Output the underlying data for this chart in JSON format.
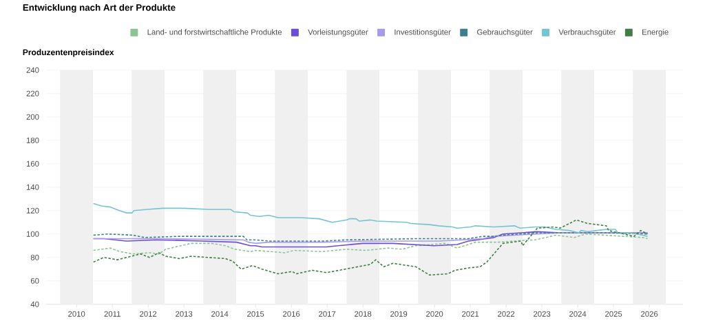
{
  "chart_data": {
    "type": "line",
    "title": "Entwicklung nach Art der Produkte",
    "ylabel": "Produzentenpreisindex",
    "xlim": [
      2009.15,
      2026.94
    ],
    "ylim": [
      40,
      240
    ],
    "xticks": [
      2010,
      2011,
      2012,
      2013,
      2014,
      2015,
      2016,
      2017,
      2018,
      2019,
      2020,
      2021,
      2022,
      2023,
      2024,
      2025,
      2026
    ],
    "yticks": [
      40,
      60,
      80,
      100,
      120,
      140,
      160,
      180,
      200,
      220,
      240
    ],
    "grid": "y",
    "legend": "top",
    "bands": [
      {
        "axis": "x",
        "from": 2009.54,
        "to": 2010.46,
        "color": "#f0f0f0"
      },
      {
        "axis": "x",
        "from": 2011.54,
        "to": 2012.46,
        "color": "#f0f0f0"
      },
      {
        "axis": "x",
        "from": 2013.54,
        "to": 2014.46,
        "color": "#f0f0f0"
      },
      {
        "axis": "x",
        "from": 2015.54,
        "to": 2016.46,
        "color": "#f0f0f0"
      },
      {
        "axis": "x",
        "from": 2017.54,
        "to": 2018.46,
        "color": "#f0f0f0"
      },
      {
        "axis": "x",
        "from": 2019.54,
        "to": 2020.46,
        "color": "#f0f0f0"
      },
      {
        "axis": "x",
        "from": 2021.54,
        "to": 2022.46,
        "color": "#f0f0f0"
      },
      {
        "axis": "x",
        "from": 2023.54,
        "to": 2024.46,
        "color": "#f0f0f0"
      },
      {
        "axis": "x",
        "from": 2025.54,
        "to": 2026.46,
        "color": "#f0f0f0"
      }
    ],
    "series": [
      {
        "name": "Land- und forstwirtschaftliche Produkte",
        "color": "#8cc492",
        "line_style": "dashed",
        "x": [
          2010.47,
          2010.95,
          2011.2,
          2011.58,
          2012.04,
          2012.3,
          2012.49,
          2013.2,
          2013.77,
          2014.16,
          2014.42,
          2014.86,
          2015.0,
          2015.82,
          2016.08,
          2016.85,
          2017.55,
          2018.07,
          2018.71,
          2019.09,
          2019.48,
          2020.31,
          2020.63,
          2021.14,
          2021.78,
          2022.23,
          2022.81,
          2023.39,
          2023.9,
          2024.22,
          2025.82,
          2025.95
        ],
        "values": [
          86,
          88,
          85,
          83,
          84,
          83,
          87,
          92,
          92,
          90,
          87,
          85,
          86,
          84,
          86,
          85,
          87,
          86,
          88,
          87,
          90,
          92,
          88,
          93,
          93,
          94,
          95,
          99,
          97,
          100,
          97,
          96
        ]
      },
      {
        "name": "Vorleistungsgüter",
        "color": "#6a4fd6",
        "line_style": "solid",
        "x": [
          2010.47,
          2010.76,
          2011.4,
          2012.23,
          2013.51,
          2014.47,
          2014.86,
          2015.0,
          2015.18,
          2015.63,
          2016.98,
          2017.3,
          2018.0,
          2018.84,
          2019.99,
          2020.63,
          2020.95,
          2021.66,
          2021.91,
          2022.87,
          2023.51,
          2024.54,
          2025.95
        ],
        "values": [
          96,
          96,
          94,
          95,
          94,
          93,
          90,
          90,
          89,
          89,
          89,
          90,
          92,
          92,
          90,
          91,
          94,
          97,
          100,
          102,
          101,
          101,
          101
        ]
      },
      {
        "name": "Investitionsgüter",
        "color": "#a99be8",
        "line_style": "solid",
        "x": [
          2010.47,
          2012.23,
          2014.66,
          2014.8,
          2015.0,
          2015.36,
          2016.9,
          2018.07,
          2020.12,
          2020.76,
          2021.34,
          2021.66,
          2022.23,
          2023.51,
          2025.95
        ],
        "values": [
          96,
          96,
          95,
          93,
          92,
          93,
          93,
          94,
          94,
          95,
          96,
          98,
          99,
          101,
          101
        ]
      },
      {
        "name": "Gebrauchsgüter",
        "color": "#3d7f8f",
        "line_style": "dashed",
        "x": [
          2010.47,
          2010.88,
          2011.58,
          2011.9,
          2012.87,
          2013.51,
          2014.66,
          2014.76,
          2015.0,
          2015.36,
          2016.9,
          2017.55,
          2019.48,
          2020.63,
          2020.95,
          2021.34,
          2021.66,
          2021.91,
          2022.87,
          2023.64,
          2024.8,
          2025.95
        ],
        "values": [
          99,
          100,
          99,
          97,
          98,
          98,
          98,
          95,
          95,
          94,
          94,
          95,
          96,
          96,
          96,
          98,
          98,
          99,
          101,
          101,
          101,
          100
        ]
      },
      {
        "name": "Verbrauchsgüter",
        "color": "#74c4d1",
        "line_style": "solid",
        "x": [
          2010.47,
          2010.7,
          2010.95,
          2011.2,
          2011.4,
          2011.55,
          2011.6,
          2011.98,
          2012.4,
          2013.0,
          2013.7,
          2013.96,
          2014.3,
          2014.4,
          2014.77,
          2014.86,
          2015.1,
          2015.37,
          2015.63,
          2016.27,
          2016.78,
          2017.14,
          2017.55,
          2017.62,
          2017.81,
          2017.9,
          2018.2,
          2018.39,
          2019.22,
          2019.35,
          2019.86,
          2020.12,
          2020.5,
          2020.63,
          2021.0,
          2021.14,
          2021.66,
          2022.23,
          2022.39,
          2022.81,
          2023.07,
          2023.39,
          2023.77,
          2024.03,
          2024.09,
          2024.28,
          2024.54,
          2024.8,
          2025.05,
          2025.12,
          2025.44,
          2025.82,
          2025.95
        ],
        "values": [
          126,
          124,
          123,
          120,
          118,
          118,
          120,
          121,
          122,
          122,
          121,
          121,
          121,
          119,
          118,
          116,
          115,
          116,
          114,
          114,
          113,
          110,
          112,
          113,
          113,
          111,
          112,
          111,
          110,
          109,
          108,
          107,
          106,
          105,
          106,
          107,
          106,
          107,
          105,
          106,
          106,
          104,
          103,
          101,
          103,
          102,
          103,
          104,
          104,
          101,
          101,
          99,
          98
        ]
      },
      {
        "name": "Energie",
        "color": "#3f7f45",
        "line_style": "dashed",
        "x": [
          2010.47,
          2010.76,
          2011.14,
          2011.79,
          2012.04,
          2012.3,
          2012.49,
          2012.87,
          2013.2,
          2014.16,
          2014.35,
          2014.6,
          2014.92,
          2015.18,
          2015.63,
          2016.02,
          2016.14,
          2016.59,
          2016.98,
          2017.68,
          2018.2,
          2018.36,
          2018.58,
          2018.84,
          2019.48,
          2019.86,
          2020.37,
          2020.57,
          2020.95,
          2021.27,
          2021.46,
          2021.91,
          2022.42,
          2022.46,
          2022.87,
          2023.32,
          2023.51,
          2023.96,
          2024.28,
          2024.8,
          2024.86,
          2025.57,
          2025.76,
          2025.95
        ],
        "values": [
          76,
          80,
          78,
          83,
          80,
          84,
          81,
          79,
          81,
          79,
          77,
          70,
          73,
          70,
          66,
          68,
          66,
          69,
          67,
          71,
          74,
          78,
          72,
          75,
          72,
          65,
          66,
          69,
          71,
          72,
          76,
          92,
          94,
          90,
          105,
          106,
          105,
          112,
          109,
          107,
          103,
          98,
          103,
          100
        ]
      }
    ]
  }
}
